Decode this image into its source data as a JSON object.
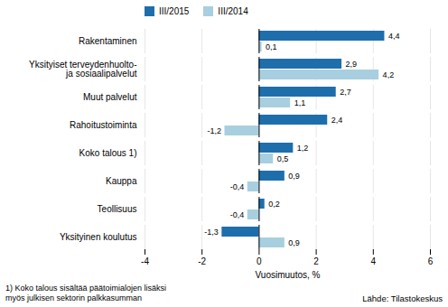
{
  "chart_data": {
    "type": "bar",
    "orientation": "horizontal",
    "categories": [
      "Rakentaminen",
      "Yksityiset terveydenhuolto- ja sosiaalipalvelut",
      "Muut palvelut",
      "Rahoitustoiminta",
      "Koko talous 1)",
      "Kauppa",
      "Teollisuus",
      "Yksityinen koulutus"
    ],
    "series": [
      {
        "name": "III/2015",
        "color": "#1f6eac",
        "values": [
          4.4,
          2.9,
          2.7,
          2.4,
          1.2,
          0.9,
          0.2,
          -1.3
        ],
        "value_labels": [
          "4,4",
          "2,9",
          "2,7",
          "2,4",
          "1,2",
          "0,9",
          "0,2",
          "-1,3"
        ]
      },
      {
        "name": "III/2014",
        "color": "#a8cfe0",
        "values": [
          0.1,
          4.2,
          1.1,
          -1.2,
          0.5,
          -0.4,
          -0.4,
          0.9
        ],
        "value_labels": [
          "0,1",
          "4,2",
          "1,1",
          "-1,2",
          "0,5",
          "-0,4",
          "-0,4",
          "0,9"
        ]
      }
    ],
    "xlabel": "Vuosimuutos, %",
    "xlim": [
      -4,
      6
    ],
    "xticks": [
      -4,
      -2,
      0,
      2,
      4,
      6
    ],
    "grid": true,
    "legend": "top",
    "data_labels": true,
    "annotations": [
      "1) Koko talous sisältää päätoimialojen lisäksi\nmyös julkisen sektorin palkkasumman",
      "Lähde: Tilastokeskus"
    ]
  }
}
